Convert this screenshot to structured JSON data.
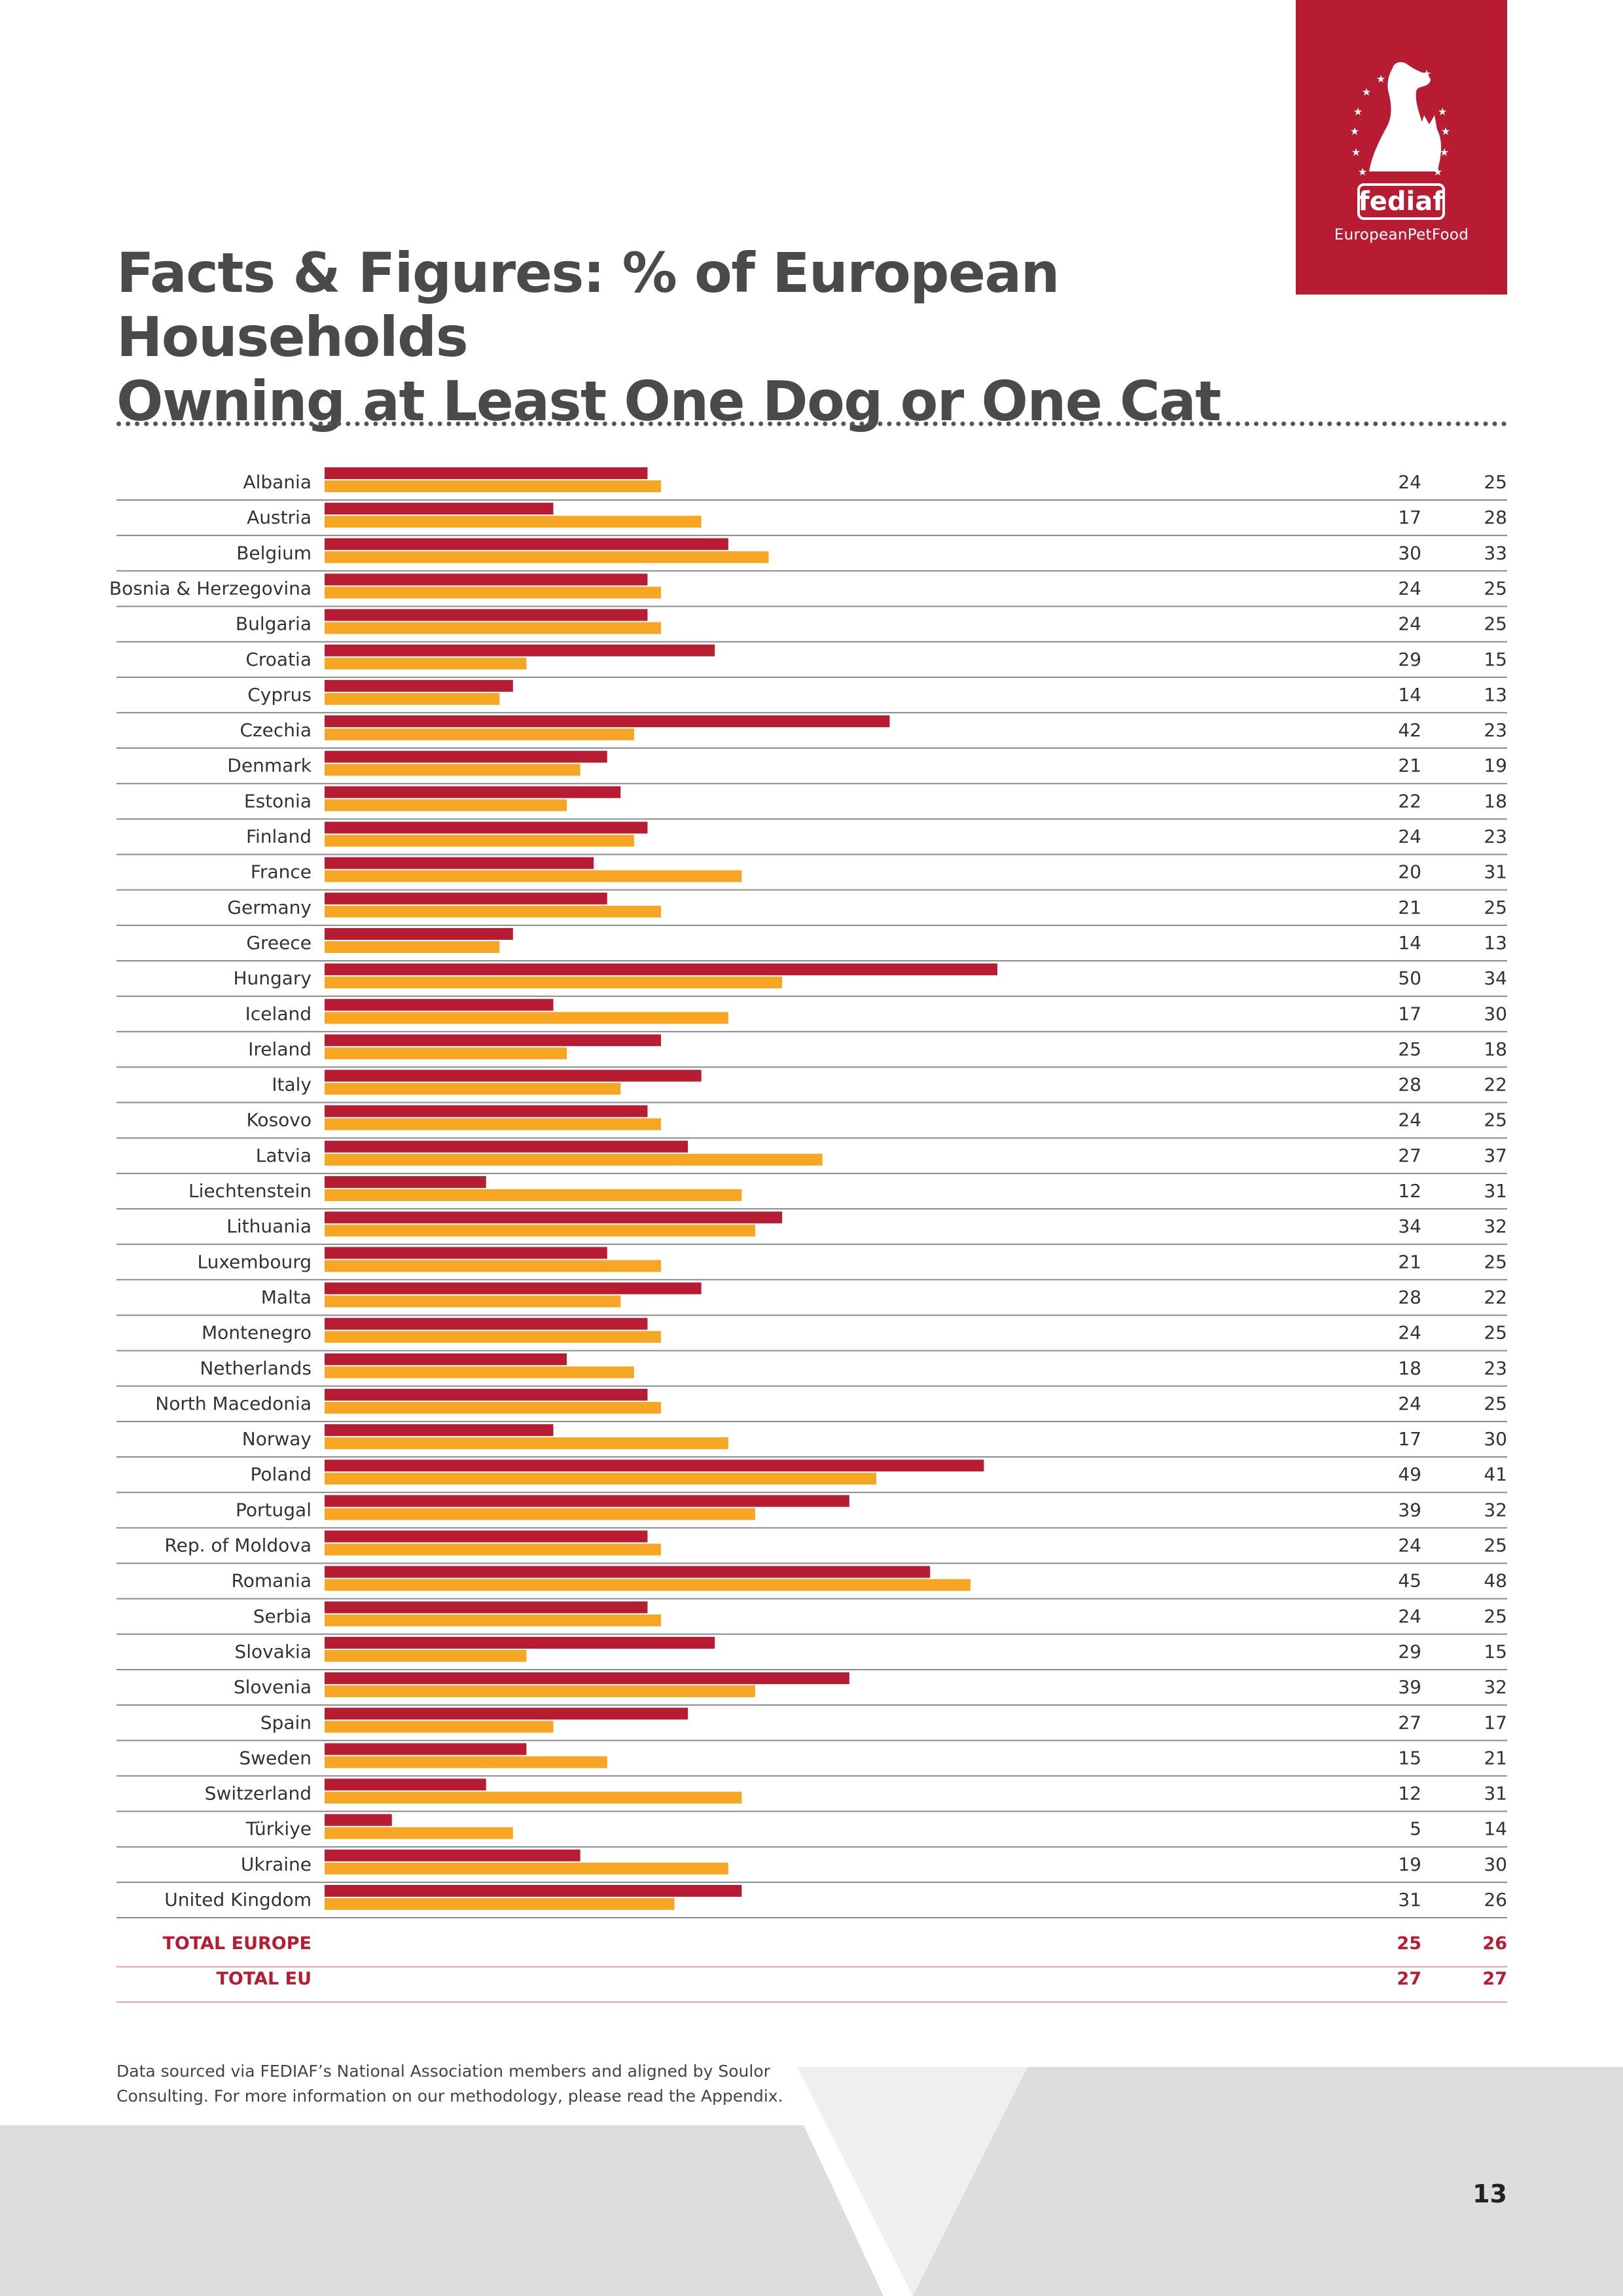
{
  "page": {
    "title_line1": "Facts & Figures: % of European Households",
    "title_line2": "Owning at Least One Dog or One Cat",
    "footnote_line1": "Data sourced via FEDIAF’s National Association members and aligned by Soulor",
    "footnote_line2": "Consulting. For more information on our methodology, please read the Appendix.",
    "page_number": "13"
  },
  "logo": {
    "wordmark": "fediaf",
    "tagline": "EuropeanPetFood",
    "brand_color": "#b71c33"
  },
  "chart_data": {
    "type": "bar",
    "orientation": "horizontal",
    "title": "Facts & Figures: % of European Households Owning at Least One Dog or One Cat",
    "xlim": [
      0,
      50
    ],
    "grid": false,
    "legend": "none",
    "categories": [
      "Albania",
      "Austria",
      "Belgium",
      "Bosnia & Herzegovina",
      "Bulgaria",
      "Croatia",
      "Cyprus",
      "Czechia",
      "Denmark",
      "Estonia",
      "Finland",
      "France",
      "Germany",
      "Greece",
      "Hungary",
      "Iceland",
      "Ireland",
      "Italy",
      "Kosovo",
      "Latvia",
      "Liechtenstein",
      "Lithuania",
      "Luxembourg",
      "Malta",
      "Montenegro",
      "Netherlands",
      "North Macedonia",
      "Norway",
      "Poland",
      "Portugal",
      "Rep. of Moldova",
      "Romania",
      "Serbia",
      "Slovakia",
      "Slovenia",
      "Spain",
      "Sweden",
      "Switzerland",
      "Türkiye",
      "Ukraine",
      "United Kingdom"
    ],
    "series": [
      {
        "color": "#b71c33",
        "values": [
          24,
          17,
          30,
          24,
          24,
          29,
          14,
          42,
          21,
          22,
          24,
          20,
          21,
          14,
          50,
          17,
          25,
          28,
          24,
          27,
          12,
          34,
          21,
          28,
          24,
          18,
          24,
          17,
          49,
          39,
          24,
          45,
          24,
          29,
          39,
          27,
          15,
          12,
          5,
          19,
          31
        ]
      },
      {
        "color": "#f6a623",
        "values": [
          25,
          28,
          33,
          25,
          25,
          15,
          13,
          23,
          19,
          18,
          23,
          31,
          25,
          13,
          34,
          30,
          18,
          22,
          25,
          37,
          31,
          32,
          25,
          22,
          25,
          23,
          25,
          30,
          41,
          32,
          25,
          48,
          25,
          15,
          32,
          17,
          21,
          31,
          14,
          30,
          26
        ]
      }
    ],
    "totals": [
      {
        "label": "TOTAL EUROPE",
        "values": [
          25,
          26
        ]
      },
      {
        "label": "TOTAL EU",
        "values": [
          27,
          27
        ]
      }
    ]
  }
}
